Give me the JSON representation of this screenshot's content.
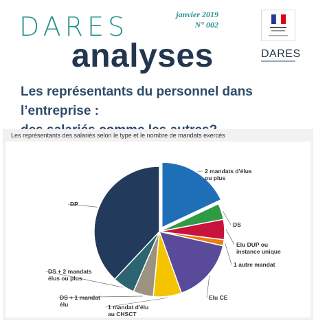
{
  "header": {
    "brand_top": "DARES",
    "brand_bottom": "analyses",
    "issue_date": "janvier 2019",
    "issue_number": "N° 002",
    "dares_logo": "DARES",
    "gov_logo_icon": "marianne-republique-francaise-logo"
  },
  "headline": {
    "line1": "Les représentants du personnel dans l’entreprise :",
    "line2": "des salariés comme les autres?"
  },
  "chart_data": {
    "type": "pie",
    "title": "Les représentants des salariés selon le type et le nombre de mandats exercés",
    "slices": [
      {
        "label": "2 mandats d'élus ou plus",
        "value": 18,
        "color": "#1f6fb8",
        "exploded": true
      },
      {
        "label": "DS",
        "value": 4,
        "color": "#2e9a43"
      },
      {
        "label": "Elu DUP ou instance unique",
        "value": 5,
        "color": "#c8133d"
      },
      {
        "label": "1 autre mandat",
        "value": 1.5,
        "color": "#ec7d12"
      },
      {
        "label": "Elu CE",
        "value": 16,
        "color": "#5a4b9a"
      },
      {
        "label": "1 mandat d'élu au CHSCT",
        "value": 7,
        "color": "#f5c400"
      },
      {
        "label": "DS + 1 mandat élu",
        "value": 5,
        "color": "#9b9282"
      },
      {
        "label": "DS + 2 mandats élus ou plus",
        "value": 5.5,
        "color": "#2c6471"
      },
      {
        "label": "DP",
        "value": 38,
        "color": "#223a5c"
      }
    ]
  }
}
